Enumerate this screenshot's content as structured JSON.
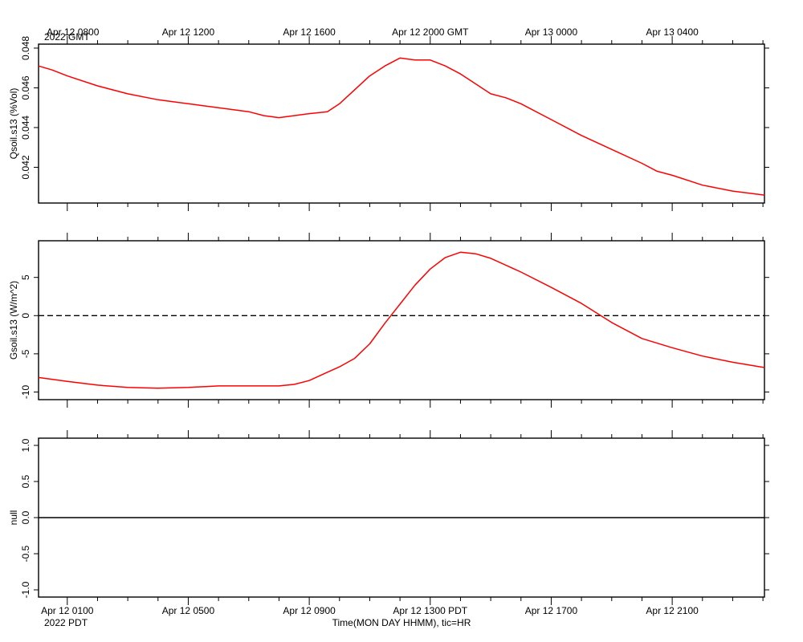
{
  "top_axis": {
    "ticks": [
      "Apr 12 0800",
      "Apr 12 1200",
      "Apr 12 1600",
      "Apr 12 2000 GMT",
      "Apr 13 0000",
      "Apr 13 0400"
    ],
    "year_label": "2022 GMT"
  },
  "bottom_axis": {
    "ticks": [
      "Apr 12 0100",
      "Apr 12 0500",
      "Apr 12 0900",
      "Apr 12 1300 PDT",
      "Apr 12 1700",
      "Apr 12 2100"
    ],
    "year_label": "2022 PDT",
    "xlabel": "Time(MON DAY HHMM), tic=HR"
  },
  "colors": {
    "series": "#ff0000",
    "axis": "#000000"
  },
  "chart_data": [
    {
      "type": "line",
      "ylabel": "Qsoil.s13 (%Vol)",
      "yticks": [
        "0.042",
        "0.044",
        "0.046",
        "0.048"
      ],
      "ylim": [
        0.0402,
        0.0482
      ],
      "xlim_hours_pdt": [
        0.05,
        24.05
      ],
      "x_hours_pdt": [
        0.05,
        0.5,
        1,
        2,
        3,
        4,
        5,
        6,
        7,
        7.5,
        8,
        8.5,
        9,
        9.6,
        10,
        10.5,
        11,
        11.5,
        12,
        12.5,
        13,
        13.5,
        14,
        14.5,
        15,
        15.5,
        16,
        17,
        18,
        19,
        20,
        20.5,
        21,
        22,
        23,
        24.05
      ],
      "series": [
        {
          "values": [
            0.0471,
            0.0469,
            0.0466,
            0.0461,
            0.0457,
            0.0454,
            0.0452,
            0.045,
            0.0448,
            0.0446,
            0.0445,
            0.0446,
            0.0447,
            0.0448,
            0.0452,
            0.0459,
            0.0466,
            0.0471,
            0.0475,
            0.0474,
            0.0474,
            0.0471,
            0.0467,
            0.0462,
            0.0457,
            0.0455,
            0.0452,
            0.0444,
            0.0436,
            0.0429,
            0.0422,
            0.0418,
            0.0416,
            0.0411,
            0.0408,
            0.0406
          ]
        }
      ]
    },
    {
      "type": "line",
      "ylabel": "Gsoil.s13 (W/m^2)",
      "yticks": [
        "-10",
        "-5",
        "0",
        "5"
      ],
      "ylim": [
        -11,
        9.8
      ],
      "xlim_hours_pdt": [
        0.05,
        24.05
      ],
      "x_hours_pdt": [
        0.05,
        1,
        2,
        3,
        4,
        5,
        6,
        7,
        8,
        8.5,
        9,
        9.5,
        10,
        10.5,
        11,
        11.5,
        12,
        12.5,
        13,
        13.5,
        14,
        14.5,
        15,
        16,
        17,
        18,
        19,
        20,
        21,
        22,
        23,
        24.05
      ],
      "series": [
        {
          "values": [
            -8.1,
            -8.6,
            -9.1,
            -9.4,
            -9.5,
            -9.4,
            -9.2,
            -9.2,
            -9.2,
            -9,
            -8.5,
            -7.6,
            -6.7,
            -5.6,
            -3.7,
            -1,
            1.5,
            4,
            6.1,
            7.6,
            8.3,
            8.1,
            7.5,
            5.7,
            3.7,
            1.6,
            -0.9,
            -3,
            -4.2,
            -5.3,
            -6.1,
            -6.8
          ]
        }
      ],
      "reference_line": {
        "y": 0,
        "style": "dashed"
      }
    },
    {
      "type": "line",
      "ylabel": "null",
      "yticks": [
        "-1.0",
        "-0.5",
        "0.0",
        "0.5",
        "1.0"
      ],
      "ylim": [
        -1.1,
        1.1
      ],
      "reference_line": {
        "y": 0,
        "style": "solid"
      }
    }
  ]
}
